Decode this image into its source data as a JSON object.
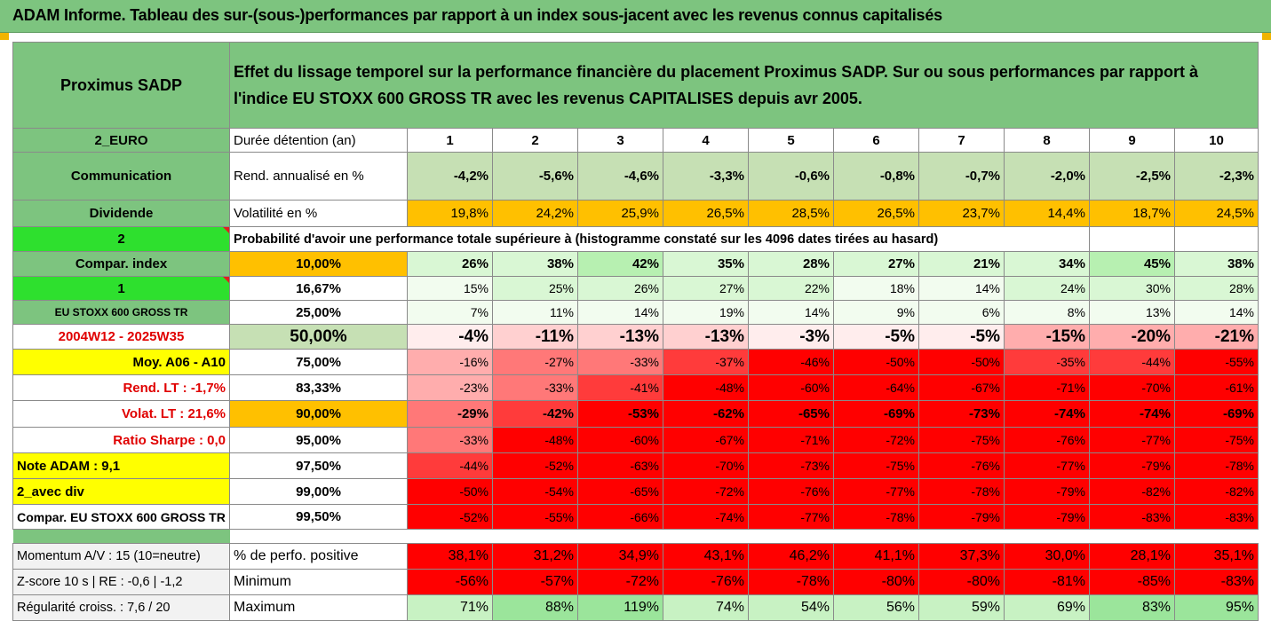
{
  "title": "ADAM Informe. Tableau des sur-(sous-)performances par rapport à un index sous-jacent avec les revenus connus capitalisés",
  "header": {
    "fund": "Proximus SADP",
    "description_line1": "Effet du lissage temporel sur la performance financière du placement Proximus SADP. Sur ou sous performances par rapport à",
    "description_line2": "l'indice EU STOXX 600 GROSS TR avec les revenus CAPITALISES depuis avr 2005."
  },
  "left_labels": {
    "currency": "2_EURO",
    "sector": "Communication",
    "dividend": "Dividende",
    "num2": "2",
    "compar_index": "Compar. index",
    "num1": "1",
    "index_name": "EU STOXX 600 GROSS TR",
    "period": "2004W12 - 2025W35",
    "moy": "Moy. A06 - A10",
    "rend_lt": "Rend. LT :   -1,7%",
    "volat_lt": "Volat. LT :   21,6%",
    "sharpe": "Ratio Sharpe :   0,0",
    "note": "Note ADAM : 9,1",
    "avec_div": "2_avec div",
    "compar": "Compar. EU STOXX 600 GROSS TR",
    "momentum": "Momentum A/V : 15 (10=neutre)",
    "zscore": "Z-score 10 s  |  RE : -0,6  |  -1,2",
    "regularite": "Régularité croiss. : 7,6 / 20"
  },
  "row_labels": {
    "duree": "Durée détention (an)",
    "rend": "Rend. annualisé en %",
    "volat": "Volatilité en %",
    "proba": "Probabilité d'avoir une performance totale supérieure à (histogramme constaté sur les 4096 dates tirées au hasard)",
    "pct_positive": "% de perfo. positive",
    "minimum": "Minimum",
    "maximum": "Maximum"
  },
  "years": [
    "1",
    "2",
    "3",
    "4",
    "5",
    "6",
    "7",
    "8",
    "9",
    "10"
  ],
  "rend": [
    "-4,2%",
    "-5,6%",
    "-4,6%",
    "-3,3%",
    "-0,6%",
    "-0,8%",
    "-0,7%",
    "-2,0%",
    "-2,5%",
    "-2,3%"
  ],
  "volat": [
    "19,8%",
    "24,2%",
    "25,9%",
    "26,5%",
    "28,5%",
    "26,5%",
    "23,7%",
    "14,4%",
    "18,7%",
    "24,5%"
  ],
  "percentile_rows": [
    {
      "p": "10,00%",
      "values": [
        "26%",
        "38%",
        "42%",
        "35%",
        "28%",
        "27%",
        "21%",
        "34%",
        "45%",
        "38%"
      ]
    },
    {
      "p": "16,67%",
      "values": [
        "15%",
        "25%",
        "26%",
        "27%",
        "22%",
        "18%",
        "14%",
        "24%",
        "30%",
        "28%"
      ]
    },
    {
      "p": "25,00%",
      "values": [
        "7%",
        "11%",
        "14%",
        "19%",
        "14%",
        "9%",
        "6%",
        "8%",
        "13%",
        "14%"
      ]
    },
    {
      "p": "50,00%",
      "values": [
        "-4%",
        "-11%",
        "-13%",
        "-13%",
        "-3%",
        "-5%",
        "-5%",
        "-15%",
        "-20%",
        "-21%"
      ]
    },
    {
      "p": "75,00%",
      "values": [
        "-16%",
        "-27%",
        "-33%",
        "-37%",
        "-46%",
        "-50%",
        "-50%",
        "-35%",
        "-44%",
        "-55%"
      ]
    },
    {
      "p": "83,33%",
      "values": [
        "-23%",
        "-33%",
        "-41%",
        "-48%",
        "-60%",
        "-64%",
        "-67%",
        "-71%",
        "-70%",
        "-61%"
      ]
    },
    {
      "p": "90,00%",
      "values": [
        "-29%",
        "-42%",
        "-53%",
        "-62%",
        "-65%",
        "-69%",
        "-73%",
        "-74%",
        "-74%",
        "-69%"
      ]
    },
    {
      "p": "95,00%",
      "values": [
        "-33%",
        "-48%",
        "-60%",
        "-67%",
        "-71%",
        "-72%",
        "-75%",
        "-76%",
        "-77%",
        "-75%"
      ]
    },
    {
      "p": "97,50%",
      "values": [
        "-44%",
        "-52%",
        "-63%",
        "-70%",
        "-73%",
        "-75%",
        "-76%",
        "-77%",
        "-79%",
        "-78%"
      ]
    },
    {
      "p": "99,00%",
      "values": [
        "-50%",
        "-54%",
        "-65%",
        "-72%",
        "-76%",
        "-77%",
        "-78%",
        "-79%",
        "-82%",
        "-82%"
      ]
    },
    {
      "p": "99,50%",
      "values": [
        "-52%",
        "-55%",
        "-66%",
        "-74%",
        "-77%",
        "-78%",
        "-79%",
        "-79%",
        "-83%",
        "-83%"
      ]
    }
  ],
  "pct_positive": [
    "38,1%",
    "31,2%",
    "34,9%",
    "43,1%",
    "46,2%",
    "41,1%",
    "37,3%",
    "30,0%",
    "28,1%",
    "35,1%"
  ],
  "minimum": [
    "-56%",
    "-57%",
    "-72%",
    "-76%",
    "-78%",
    "-80%",
    "-80%",
    "-81%",
    "-85%",
    "-83%"
  ],
  "maximum": [
    "71%",
    "88%",
    "119%",
    "74%",
    "54%",
    "56%",
    "59%",
    "69%",
    "83%",
    "95%"
  ],
  "colors": {
    "header_green": "#7dc47f",
    "bright_green": "#2ee02e",
    "yellow": "#ffff00",
    "orange": "#ffc000",
    "strong_red": "#ff0000",
    "light_green": "#c6e0b4"
  }
}
